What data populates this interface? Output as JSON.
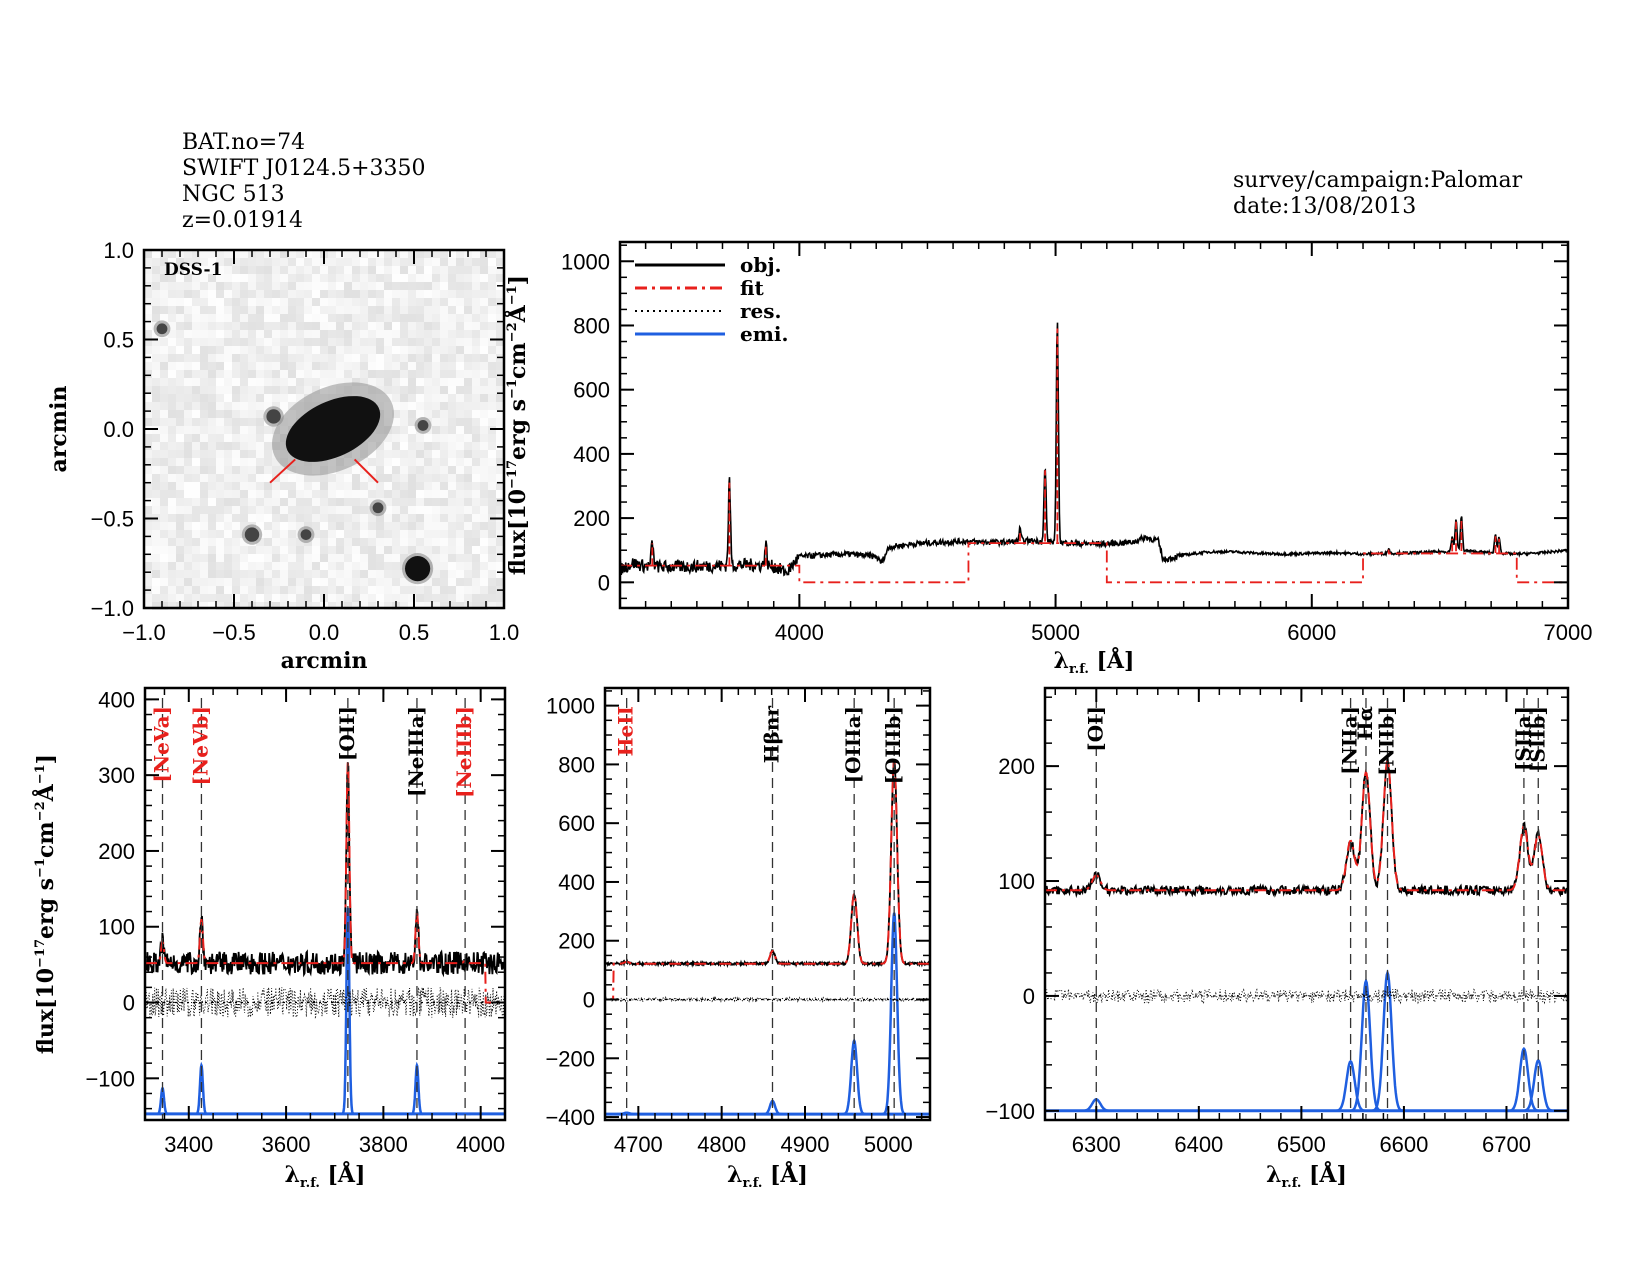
{
  "header": {
    "left_lines": [
      "BAT.no=74",
      "SWIFT J0124.5+3350",
      "NGC 513",
      "z=0.01914"
    ],
    "right_lines": [
      "survey/campaign:Palomar",
      "date:13/08/2013"
    ]
  },
  "colors": {
    "obj": "#000000",
    "fit": "#e8201c",
    "res": "#000000",
    "emi": "#1f5fe0",
    "marker_red": "#e8201c",
    "line_label_black": "#000000",
    "line_label_red": "#e8201c"
  },
  "chart_data": [
    {
      "id": "image",
      "type": "heatmap",
      "title": "",
      "image_label": "DSS-1",
      "xlabel": "arcmin",
      "ylabel": "arcmin",
      "xlim": [
        -1.0,
        1.0
      ],
      "ylim": [
        -1.0,
        1.0
      ],
      "xticks": [
        "−1.0",
        "−0.5",
        "0.0",
        "0.5",
        "1.0"
      ],
      "yticks": [
        "1.0",
        "0.5",
        "0.0",
        "−0.5",
        "−1.0"
      ],
      "xtick_values": [
        -1.0,
        -0.5,
        0.0,
        0.5,
        1.0
      ],
      "ytick_values": [
        1.0,
        0.5,
        0.0,
        -0.5,
        -1.0
      ],
      "sources": [
        {
          "name": "NGC 513",
          "x": 0.05,
          "y": 0.0,
          "size": 0.28,
          "ratio": 0.55,
          "angle_deg": -25
        },
        {
          "name": "companion",
          "x": -0.28,
          "y": 0.07,
          "size": 0.04
        },
        {
          "name": "star-1",
          "x": 0.55,
          "y": 0.02,
          "size": 0.03
        },
        {
          "name": "star-2",
          "x": -0.4,
          "y": -0.59,
          "size": 0.04
        },
        {
          "name": "star-3",
          "x": -0.1,
          "y": -0.59,
          "size": 0.03
        },
        {
          "name": "star-4",
          "x": 0.3,
          "y": -0.44,
          "size": 0.03
        },
        {
          "name": "star-5",
          "x": 0.52,
          "y": -0.78,
          "size": 0.07
        },
        {
          "name": "star-6",
          "x": -0.9,
          "y": 0.56,
          "size": 0.03
        }
      ],
      "markers": [
        {
          "x1": -0.3,
          "y1": -0.3,
          "x2": -0.16,
          "y2": -0.17
        },
        {
          "x1": 0.17,
          "y1": -0.17,
          "x2": 0.3,
          "y2": -0.3
        }
      ]
    },
    {
      "id": "full",
      "type": "line",
      "xlabel": "λr.f. [Å]",
      "ylabel": "flux[10⁻¹⁷erg s⁻¹cm⁻²Å⁻¹]",
      "xlim": [
        3300,
        7000
      ],
      "ylim": [
        -80,
        1060
      ],
      "xticks": [
        4000,
        5000,
        6000,
        7000
      ],
      "yticks": [
        0,
        200,
        400,
        600,
        800,
        1000
      ],
      "legend": {
        "position": "top-left",
        "entries": [
          "obj.",
          "fit",
          "res.",
          "emi."
        ]
      },
      "continuum_obj": [
        [
          3300,
          40
        ],
        [
          3350,
          60
        ],
        [
          3400,
          50
        ],
        [
          3500,
          48
        ],
        [
          3600,
          50
        ],
        [
          3700,
          52
        ],
        [
          3800,
          55
        ],
        [
          3900,
          50
        ],
        [
          3950,
          30
        ],
        [
          4000,
          80
        ],
        [
          4100,
          85
        ],
        [
          4200,
          88
        ],
        [
          4300,
          80
        ],
        [
          4320,
          60
        ],
        [
          4350,
          110
        ],
        [
          4450,
          120
        ],
        [
          4550,
          125
        ],
        [
          4650,
          128
        ],
        [
          4700,
          125
        ],
        [
          4800,
          125
        ],
        [
          4900,
          130
        ],
        [
          5000,
          125
        ],
        [
          5100,
          120
        ],
        [
          5200,
          120
        ],
        [
          5300,
          125
        ],
        [
          5350,
          140
        ],
        [
          5400,
          130
        ],
        [
          5420,
          70
        ],
        [
          5500,
          85
        ],
        [
          5600,
          95
        ],
        [
          5700,
          95
        ],
        [
          5800,
          90
        ],
        [
          5900,
          88
        ],
        [
          6000,
          90
        ],
        [
          6100,
          92
        ],
        [
          6200,
          88
        ],
        [
          6300,
          90
        ],
        [
          6400,
          92
        ],
        [
          6500,
          95
        ],
        [
          6600,
          98
        ],
        [
          6700,
          92
        ],
        [
          6800,
          88
        ],
        [
          6900,
          92
        ],
        [
          7000,
          100
        ]
      ],
      "lines_obj": [
        [
          3426,
          125
        ],
        [
          3727,
          320
        ],
        [
          3869,
          120
        ],
        [
          4861,
          165
        ],
        [
          4959,
          360
        ],
        [
          5007,
          815
        ],
        [
          6300,
          105
        ],
        [
          6548,
          140
        ],
        [
          6563,
          195
        ],
        [
          6584,
          205
        ],
        [
          6717,
          148
        ],
        [
          6731,
          140
        ]
      ],
      "fit_segments": [
        {
          "x": [
            3300,
            4000
          ],
          "y": 52
        },
        {
          "x": [
            4000,
            4660
          ],
          "y": 0
        },
        {
          "x": [
            4660,
            5200
          ],
          "y": 122
        },
        {
          "x": [
            5200,
            6200
          ],
          "y": 0
        },
        {
          "x": [
            6200,
            6800
          ],
          "y": 90
        },
        {
          "x": [
            6800,
            7000
          ],
          "y": 0
        }
      ]
    },
    {
      "id": "panel-blue",
      "type": "line",
      "xlabel": "λr.f. [Å]",
      "ylabel": "flux[10⁻¹⁷erg s⁻¹cm⁻²Å⁻¹]",
      "xlim": [
        3310,
        4050
      ],
      "ylim": [
        -155,
        415
      ],
      "xticks": [
        3400,
        3600,
        3800,
        4000
      ],
      "yticks": [
        -100,
        0,
        100,
        200,
        300,
        400
      ],
      "emi_baseline": -147,
      "continuum_level": 52,
      "lines": [
        {
          "label": "[NeVa]",
          "wave": 3346,
          "color": "red",
          "obj_peak": 80,
          "emi_peak": -113,
          "width": 3
        },
        {
          "label": "[NeVb]",
          "wave": 3426,
          "color": "red",
          "obj_peak": 110,
          "emi_peak": -83,
          "width": 3
        },
        {
          "label": "[OII]",
          "wave": 3727,
          "color": "black",
          "obj_peak": 320,
          "emi_peak": 125,
          "width": 3
        },
        {
          "label": "[NeIIIa]",
          "wave": 3869,
          "color": "black",
          "obj_peak": 118,
          "emi_peak": -83,
          "width": 3
        },
        {
          "label": "[NeIIIb]",
          "wave": 3968,
          "color": "red",
          "obj_peak": 55,
          "emi_peak": -147,
          "width": 3
        }
      ],
      "fit_step_end": 4010
    },
    {
      "id": "panel-green",
      "type": "line",
      "xlabel": "λr.f. [Å]",
      "ylabel": "",
      "xlim": [
        4660,
        5050
      ],
      "ylim": [
        -410,
        1060
      ],
      "xticks": [
        4700,
        4800,
        4900,
        5000
      ],
      "yticks": [
        -400,
        -200,
        0,
        200,
        400,
        600,
        800,
        1000
      ],
      "emi_baseline": -390,
      "continuum_level": 122,
      "lines": [
        {
          "label": "HeII",
          "wave": 4686,
          "color": "red",
          "obj_peak": 128,
          "emi_peak": -385,
          "width": 3
        },
        {
          "label": "Hβnr",
          "wave": 4861,
          "color": "black",
          "obj_peak": 165,
          "emi_peak": -345,
          "width": 3
        },
        {
          "label": "[OIIIa]",
          "wave": 4959,
          "color": "black",
          "obj_peak": 360,
          "emi_peak": -140,
          "width": 3.5
        },
        {
          "label": "[OIIIb]",
          "wave": 5007,
          "color": "black",
          "obj_peak": 815,
          "emi_peak": 295,
          "width": 3.5
        }
      ],
      "fit_step_start": 4670
    },
    {
      "id": "panel-red",
      "type": "line",
      "xlabel": "λr.f. [Å]",
      "ylabel": "",
      "xlim": [
        6250,
        6760
      ],
      "ylim": [
        -108,
        268
      ],
      "xticks": [
        6300,
        6400,
        6500,
        6600,
        6700
      ],
      "yticks": [
        -100,
        0,
        100,
        200
      ],
      "emi_baseline": -100,
      "continuum_level": 92,
      "lines": [
        {
          "label": "[OI]",
          "wave": 6300,
          "color": "black",
          "obj_peak": 105,
          "emi_peak": -90,
          "width": 4
        },
        {
          "label": "[NIIa]",
          "wave": 6548,
          "color": "black",
          "obj_peak": 135,
          "emi_peak": -57,
          "width": 4
        },
        {
          "label": "Hα",
          "wave": 6563,
          "color": "black",
          "obj_peak": 195,
          "emi_peak": 13,
          "width": 4
        },
        {
          "label": "[NIIb]",
          "wave": 6584,
          "color": "black",
          "obj_peak": 205,
          "emi_peak": 20,
          "width": 4
        },
        {
          "label": "[SIIa]",
          "wave": 6717,
          "color": "black",
          "obj_peak": 148,
          "emi_peak": -46,
          "width": 4
        },
        {
          "label": "[SIIb]",
          "wave": 6731,
          "color": "black",
          "obj_peak": 140,
          "emi_peak": -56,
          "width": 4
        }
      ]
    }
  ]
}
